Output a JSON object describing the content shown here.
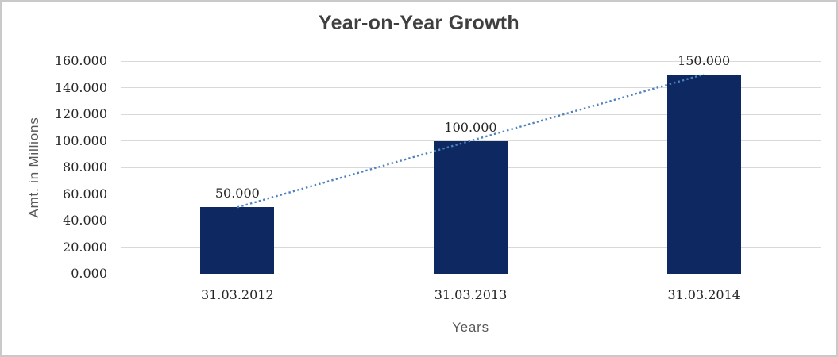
{
  "chart_data": {
    "type": "bar",
    "title": "Year-on-Year Growth",
    "xlabel": "Years",
    "ylabel": "Amt. in Millions",
    "categories": [
      "31.03.2012",
      "31.03.2013",
      "31.03.2014"
    ],
    "values": [
      50,
      100,
      150
    ],
    "value_labels": [
      "50.000",
      "100.000",
      "150.000"
    ],
    "ylim": [
      0,
      160
    ],
    "yticks": {
      "values": [
        0,
        20,
        40,
        60,
        80,
        100,
        120,
        140,
        160
      ],
      "labels": [
        "0.000",
        "20.000",
        "40.000",
        "60.000",
        "80.000",
        "100.000",
        "120.000",
        "140.000",
        "160.000"
      ]
    },
    "grid": true,
    "legend": false,
    "trendline": {
      "style": "dotted",
      "from": {
        "x_index": 0,
        "value": 50
      },
      "to": {
        "x_index": 2,
        "value": 150
      }
    }
  },
  "colors": {
    "bar": "#0e2862",
    "trendline": "#4e81bd",
    "gridline": "#d9d9d9",
    "title_text": "#3f3f3f",
    "tick_text": "#262626",
    "data_label_text": "#262626",
    "axis_title_text": "#595959",
    "frame_border": "#c9c9c9",
    "background": "#ffffff"
  }
}
